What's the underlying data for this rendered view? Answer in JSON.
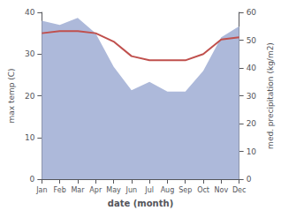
{
  "chart_data": {
    "type": "line",
    "xlabel": "date (month)",
    "ylabel": "max temp (C)",
    "y2label": "med. precipitation (kg/m2)",
    "categories": [
      "Jan",
      "Feb",
      "Mar",
      "Apr",
      "May",
      "Jun",
      "Jul",
      "Aug",
      "Sep",
      "Oct",
      "Nov",
      "Dec"
    ],
    "series": [
      {
        "type": "area",
        "axis": "y2",
        "color": "#adb9da",
        "values": [
          57.0,
          55.5,
          58.0,
          52.5,
          40.5,
          32.0,
          35.0,
          31.5,
          31.5,
          39.0,
          51.0,
          55.0
        ]
      },
      {
        "type": "line",
        "color": "#c0504d",
        "values": [
          35.0,
          35.5,
          35.5,
          35.0,
          33.0,
          29.5,
          28.5,
          28.5,
          28.5,
          30.0,
          33.5,
          34.0
        ]
      }
    ],
    "ylim": [
      0,
      40
    ],
    "yticks": [
      0,
      10,
      20,
      30,
      40
    ],
    "y2lim": [
      0,
      60
    ],
    "y2ticks": [
      0,
      10,
      20,
      30,
      40,
      50,
      60
    ],
    "grid": false
  }
}
